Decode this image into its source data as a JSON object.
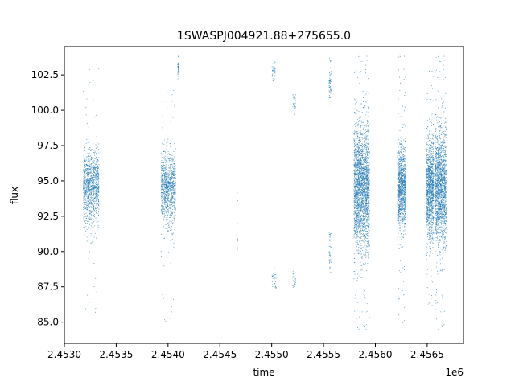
{
  "chart_data": {
    "type": "scatter",
    "title": "1SWASPJ004921.88+275655.0",
    "xlabel": "time",
    "ylabel": "flux",
    "x_offset_label": "1e6",
    "xlim": [
      2453000,
      2456850
    ],
    "ylim": [
      83.5,
      104.5
    ],
    "x_ticks": [
      2453000,
      2453500,
      2454000,
      2454500,
      2455000,
      2455500,
      2456000,
      2456500
    ],
    "x_tick_labels": [
      "2.4530",
      "2.4535",
      "2.4540",
      "2.4545",
      "2.4550",
      "2.4555",
      "2.4560",
      "2.4565"
    ],
    "y_ticks": [
      85.0,
      87.5,
      90.0,
      92.5,
      95.0,
      97.5,
      100.0,
      102.5
    ],
    "y_tick_labels": [
      "85.0",
      "87.5",
      "90.0",
      "92.5",
      "95.0",
      "97.5",
      "100.0",
      "102.5"
    ],
    "grid": false,
    "marker_color": "#1f77b4",
    "series": [
      {
        "clusters": [
          {
            "x_range": [
              2453180,
              2453330
            ],
            "center": 94.5,
            "spread": 2.2,
            "ymin": 85.3,
            "ymax": 103.7,
            "count": 1100
          },
          {
            "x_range": [
              2453930,
              2454070
            ],
            "center": 94.5,
            "spread": 2.1,
            "ymin": 84.9,
            "ymax": 101.8,
            "count": 1000
          },
          {
            "x_range": [
              2454090,
              2454100
            ],
            "center": 103.0,
            "spread": 0.5,
            "ymin": 102.2,
            "ymax": 103.9,
            "count": 40
          },
          {
            "x_range": [
              2454660,
              2454670
            ],
            "center": 91.5,
            "spread": 2.0,
            "ymin": 90.0,
            "ymax": 94.5,
            "count": 15
          },
          {
            "x_range": [
              2455000,
              2455030
            ],
            "center": 102.8,
            "spread": 0.6,
            "ymin": 101.5,
            "ymax": 103.9,
            "count": 40
          },
          {
            "x_range": [
              2455000,
              2455040
            ],
            "center": 88.0,
            "spread": 0.7,
            "ymin": 87.0,
            "ymax": 89.5,
            "count": 30
          },
          {
            "x_range": [
              2455200,
              2455230
            ],
            "center": 100.5,
            "spread": 0.6,
            "ymin": 99.5,
            "ymax": 101.3,
            "count": 30
          },
          {
            "x_range": [
              2455200,
              2455230
            ],
            "center": 88.0,
            "spread": 0.5,
            "ymin": 87.3,
            "ymax": 89.0,
            "count": 25
          },
          {
            "x_range": [
              2455550,
              2455570
            ],
            "center": 102.0,
            "spread": 1.2,
            "ymin": 99.0,
            "ymax": 104.0,
            "count": 60
          },
          {
            "x_range": [
              2455550,
              2455570
            ],
            "center": 90.0,
            "spread": 1.2,
            "ymin": 88.3,
            "ymax": 91.5,
            "count": 40
          },
          {
            "x_range": [
              2455790,
              2455940
            ],
            "center": 94.5,
            "spread": 3.8,
            "ymin": 84.3,
            "ymax": 104.0,
            "count": 2400
          },
          {
            "x_range": [
              2456210,
              2456290
            ],
            "center": 94.5,
            "spread": 2.5,
            "ymin": 84.6,
            "ymax": 104.0,
            "count": 1200
          },
          {
            "x_range": [
              2456490,
              2456560
            ],
            "center": 94.5,
            "spread": 3.0,
            "ymin": 86.0,
            "ymax": 104.0,
            "count": 1100
          },
          {
            "x_range": [
              2456570,
              2456680
            ],
            "center": 94.5,
            "spread": 3.5,
            "ymin": 84.3,
            "ymax": 104.0,
            "count": 1700
          }
        ]
      }
    ]
  }
}
